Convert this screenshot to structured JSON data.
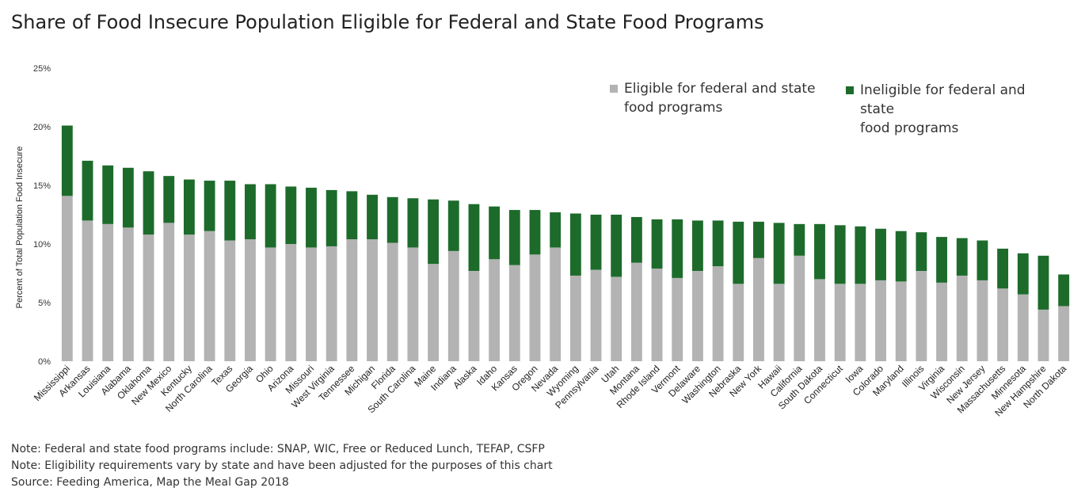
{
  "chart_data": {
    "type": "bar",
    "stacked": true,
    "title": "Share of Food Insecure Population Eligible for Federal and State Food Programs",
    "ylabel": "Percent of Total Population Food Insecure",
    "xlabel": "",
    "ylim": [
      0,
      25
    ],
    "yticks": [
      "0%",
      "5%",
      "10%",
      "15%",
      "20%",
      "25%"
    ],
    "legend_position": "top-right",
    "grid": false,
    "categories": [
      "Mississippi",
      "Arkansas",
      "Louisiana",
      "Alabama",
      "Oklahoma",
      "New Mexico",
      "Kentucky",
      "North Carolina",
      "Texas",
      "Georgia",
      "Ohio",
      "Arizona",
      "Missouri",
      "West Virginia",
      "Tennessee",
      "Michigan",
      "Florida",
      "South Carolina",
      "Maine",
      "Indiana",
      "Alaska",
      "Idaho",
      "Kansas",
      "Oregon",
      "Nevada",
      "Wyoming",
      "Pennsylvania",
      "Utah",
      "Montana",
      "Rhode Island",
      "Vermont",
      "Delaware",
      "Washington",
      "Nebraska",
      "New York",
      "Hawaii",
      "California",
      "South Dakota",
      "Connecticut",
      "Iowa",
      "Colorado",
      "Maryland",
      "Illinois",
      "Virginia",
      "Wisconsin",
      "New Jersey",
      "Massachusetts",
      "Minnesota",
      "New Hampshire",
      "North Dakota"
    ],
    "series": [
      {
        "name": "Eligible for federal and state food programs",
        "color": "#b3b3b3",
        "values": [
          14.1,
          12.0,
          11.7,
          11.4,
          10.8,
          11.8,
          10.8,
          11.1,
          10.3,
          10.4,
          9.7,
          10.0,
          9.7,
          9.8,
          10.4,
          10.4,
          10.1,
          9.7,
          8.3,
          9.4,
          7.7,
          8.7,
          8.2,
          9.1,
          9.7,
          7.3,
          7.8,
          7.2,
          8.4,
          7.9,
          7.1,
          7.7,
          8.1,
          6.6,
          8.8,
          6.6,
          9.0,
          7.0,
          6.6,
          6.6,
          6.9,
          6.8,
          7.7,
          6.7,
          7.3,
          6.9,
          6.2,
          5.7,
          4.4,
          4.7
        ]
      },
      {
        "name": "Ineligible for federal and state food programs",
        "color": "#1d6b2b",
        "values": [
          6.0,
          5.1,
          5.0,
          5.1,
          5.4,
          4.0,
          4.7,
          4.3,
          5.1,
          4.7,
          5.4,
          4.9,
          5.1,
          4.8,
          4.1,
          3.8,
          3.9,
          4.2,
          5.5,
          4.3,
          5.7,
          4.5,
          4.7,
          3.8,
          3.0,
          5.3,
          4.7,
          5.3,
          3.9,
          4.2,
          5.0,
          4.3,
          3.9,
          5.3,
          3.1,
          5.2,
          2.7,
          4.7,
          5.0,
          4.9,
          4.4,
          4.3,
          3.3,
          3.9,
          3.2,
          3.4,
          3.4,
          3.5,
          4.6,
          2.7
        ]
      }
    ]
  },
  "legend": [
    {
      "label_line1": "Eligible for federal and state",
      "label_line2": "food programs"
    },
    {
      "label_line1": "Ineligible for federal and state",
      "label_line2": "food programs"
    }
  ],
  "notes": [
    "Note: Federal and state food programs include: SNAP, WIC, Free or Reduced Lunch, TEFAP, CSFP",
    "Note: Eligibility requirements vary by state and have been adjusted for the purposes of this chart",
    "Source: Feeding America, Map the Meal Gap 2018"
  ]
}
